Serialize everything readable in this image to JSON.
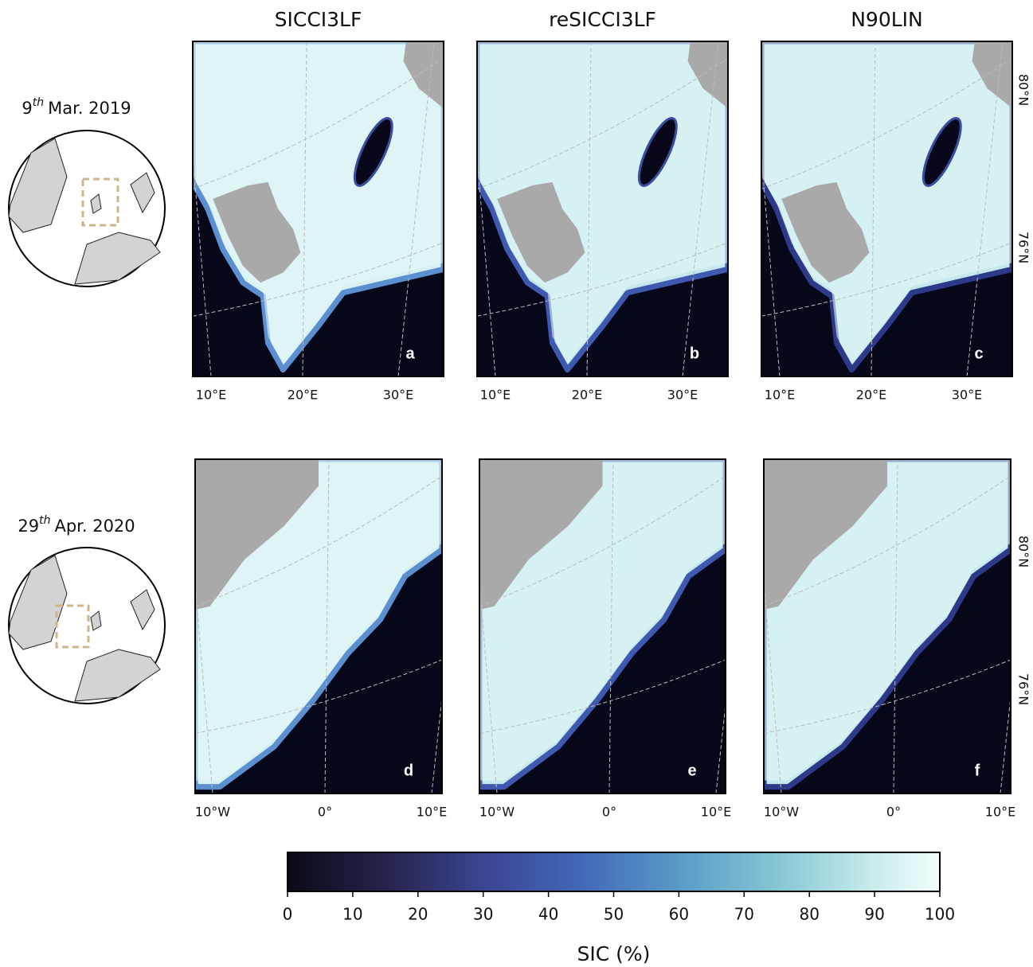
{
  "columns": [
    "SICCI3LF",
    "reSICCI3LF",
    "N90LIN"
  ],
  "rows": [
    {
      "day": "9",
      "suffix": "th",
      "date": "Mar. 2019",
      "panels": [
        "a",
        "b",
        "c"
      ],
      "lon_labels": [
        "10°E",
        "20°E",
        "30°E"
      ],
      "lat_labels": [
        "80°N",
        "76°N"
      ]
    },
    {
      "day": "29",
      "suffix": "th",
      "date": "Apr. 2020",
      "panels": [
        "d",
        "e",
        "f"
      ],
      "lon_labels": [
        "10°W",
        "0°",
        "10°E"
      ],
      "lat_labels": [
        "80°N",
        "76°N"
      ]
    }
  ],
  "colorbar": {
    "label": "SIC (%)",
    "xlim": [
      0,
      100
    ],
    "ticks": [
      0,
      10,
      20,
      30,
      40,
      50,
      60,
      70,
      80,
      90,
      100
    ]
  }
}
